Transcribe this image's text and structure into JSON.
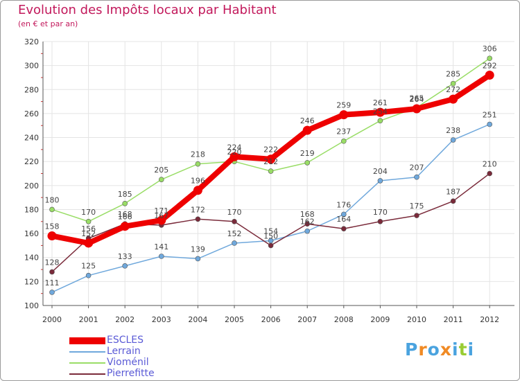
{
  "chart_data": {
    "type": "line",
    "title": "Evolution des Impôts locaux par Habitant",
    "subtitle": "(en € et par an)",
    "xlabel": "",
    "ylabel": "",
    "ylim": [
      100,
      320
    ],
    "yticks": [
      100,
      120,
      140,
      160,
      180,
      200,
      220,
      240,
      260,
      280,
      300,
      320
    ],
    "categories": [
      "2000",
      "2001",
      "2002",
      "2003",
      "2004",
      "2005",
      "2006",
      "2007",
      "2008",
      "2009",
      "2010",
      "2011",
      "2012"
    ],
    "series": [
      {
        "name": "ESCLES",
        "color": "#ee0000",
        "values": [
          158,
          152,
          166,
          171,
          196,
          224,
          222,
          246,
          259,
          261,
          264,
          272,
          292
        ]
      },
      {
        "name": "Lerrain",
        "color": "#6fa8dc",
        "values": [
          111,
          125,
          133,
          141,
          139,
          152,
          154,
          162,
          176,
          204,
          207,
          238,
          251
        ]
      },
      {
        "name": "Vioménil",
        "color": "#99dd66",
        "values": [
          180,
          170,
          185,
          205,
          218,
          220,
          212,
          219,
          237,
          254,
          265,
          285,
          306
        ]
      },
      {
        "name": "Pierrefitte",
        "color": "#7a2a3a",
        "values": [
          128,
          156,
          168,
          167,
          172,
          170,
          150,
          168,
          164,
          170,
          175,
          187,
          210
        ]
      }
    ]
  },
  "logo": {
    "letters": [
      "P",
      "r",
      "o",
      "x",
      "i",
      "t",
      "i"
    ],
    "colors": [
      "#4aa3df",
      "#f08a24",
      "#4aa3df",
      "#f08a24",
      "#4aa3df",
      "#99cc33",
      "#4aa3df"
    ]
  }
}
